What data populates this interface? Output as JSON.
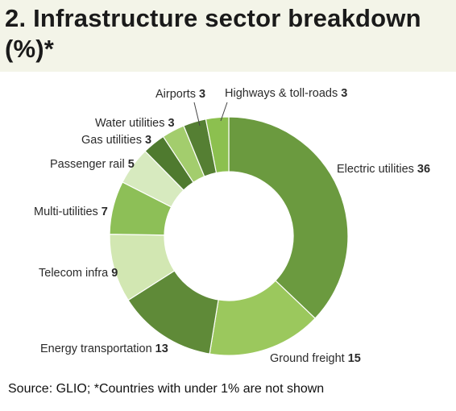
{
  "title": "2. Infrastructure sector breakdown (%)*",
  "source": "Source: GLIO; *Countries with under 1% are not shown",
  "chart_data": {
    "type": "pie",
    "variant": "donut",
    "unit": "%",
    "legend": "none",
    "start": "top, clockwise",
    "slices": [
      {
        "name": "Electric utilities",
        "value": 36,
        "color": "#6b9a3f"
      },
      {
        "name": "Ground freight",
        "value": 15,
        "color": "#9bc85d"
      },
      {
        "name": "Energy transportation",
        "value": 13,
        "color": "#5f8a38"
      },
      {
        "name": "Telecom infra",
        "value": 9,
        "color": "#d2e7b2"
      },
      {
        "name": "Multi-utilities",
        "value": 7,
        "color": "#8dbf57"
      },
      {
        "name": "Passenger rail",
        "value": 5,
        "color": "#d7eabf"
      },
      {
        "name": "Gas utilities",
        "value": 3,
        "color": "#4f7a2f"
      },
      {
        "name": "Water utilities",
        "value": 3,
        "color": "#a3cd6d"
      },
      {
        "name": "Airports",
        "value": 3,
        "color": "#557f33"
      },
      {
        "name": "Highways & toll-roads",
        "value": 3,
        "color": "#8cc04f"
      }
    ]
  }
}
